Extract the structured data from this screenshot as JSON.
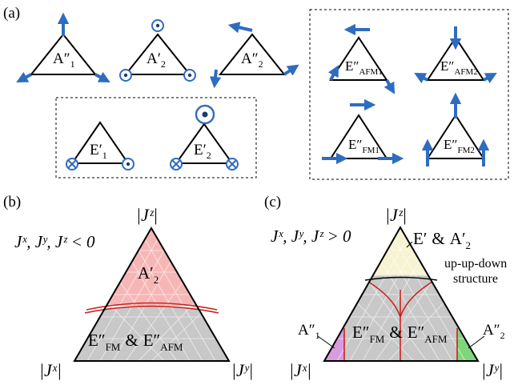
{
  "panel_labels": {
    "a": "(a)",
    "b": "(b)",
    "c": "(c)"
  },
  "panel_a": {
    "modes": [
      {
        "main": "A",
        "prime": "″",
        "sub": "1"
      },
      {
        "main": "A",
        "prime": "′",
        "sub": "2"
      },
      {
        "main": "A",
        "prime": "″",
        "sub": "2"
      },
      {
        "main": "E",
        "prime": "′",
        "sub": "1"
      },
      {
        "main": "E",
        "prime": "′",
        "sub": "2"
      },
      {
        "main": "E",
        "prime": "″",
        "sub": "AFM1"
      },
      {
        "main": "E",
        "prime": "″",
        "sub": "AFM2"
      },
      {
        "main": "E",
        "prime": "″",
        "sub": "FM1"
      },
      {
        "main": "E",
        "prime": "″",
        "sub": "FM2"
      }
    ]
  },
  "panel_b": {
    "condition": "Jˣ, Jʸ, Jᶻ < 0",
    "corner_top": "|Jᶻ|",
    "corner_left": "|Jˣ|",
    "corner_right": "|Jʸ|",
    "region_top": {
      "main": "A",
      "prime": "′",
      "sub": "2"
    },
    "region_bottom": {
      "main1": "E",
      "prime1": "″",
      "sub1": "FM",
      "amp": "&",
      "main2": "E",
      "prime2": "″",
      "sub2": "AFM"
    }
  },
  "panel_c": {
    "condition": "Jˣ, Jʸ, Jᶻ > 0",
    "corner_top": "|Jᶻ|",
    "corner_left": "|Jˣ|",
    "corner_right": "|Jʸ|",
    "region_top": {
      "main1": "E",
      "prime1": "′",
      "amp": "&",
      "main2": "A",
      "prime2": "′",
      "sub2": "2"
    },
    "annotation_line1": "up-up-down",
    "annotation_line2": "structure",
    "region_center": {
      "main1": "E",
      "prime1": "″",
      "sub1": "FM",
      "amp": "&",
      "main2": "E",
      "prime2": "″",
      "sub2": "AFM"
    },
    "region_left": {
      "main": "A",
      "prime": "″",
      "sub": "1"
    },
    "region_right": {
      "main": "A",
      "prime": "″",
      "sub": "2"
    }
  },
  "colors": {
    "spin": "#2f6cc0",
    "a2_region": "#f7b6b6",
    "gray_region": "#c8c8c8",
    "yellow_region": "#f6f3d2",
    "magenta_region": "#d99be0",
    "green_region": "#7fd67a",
    "boundary": "#c8231e"
  }
}
